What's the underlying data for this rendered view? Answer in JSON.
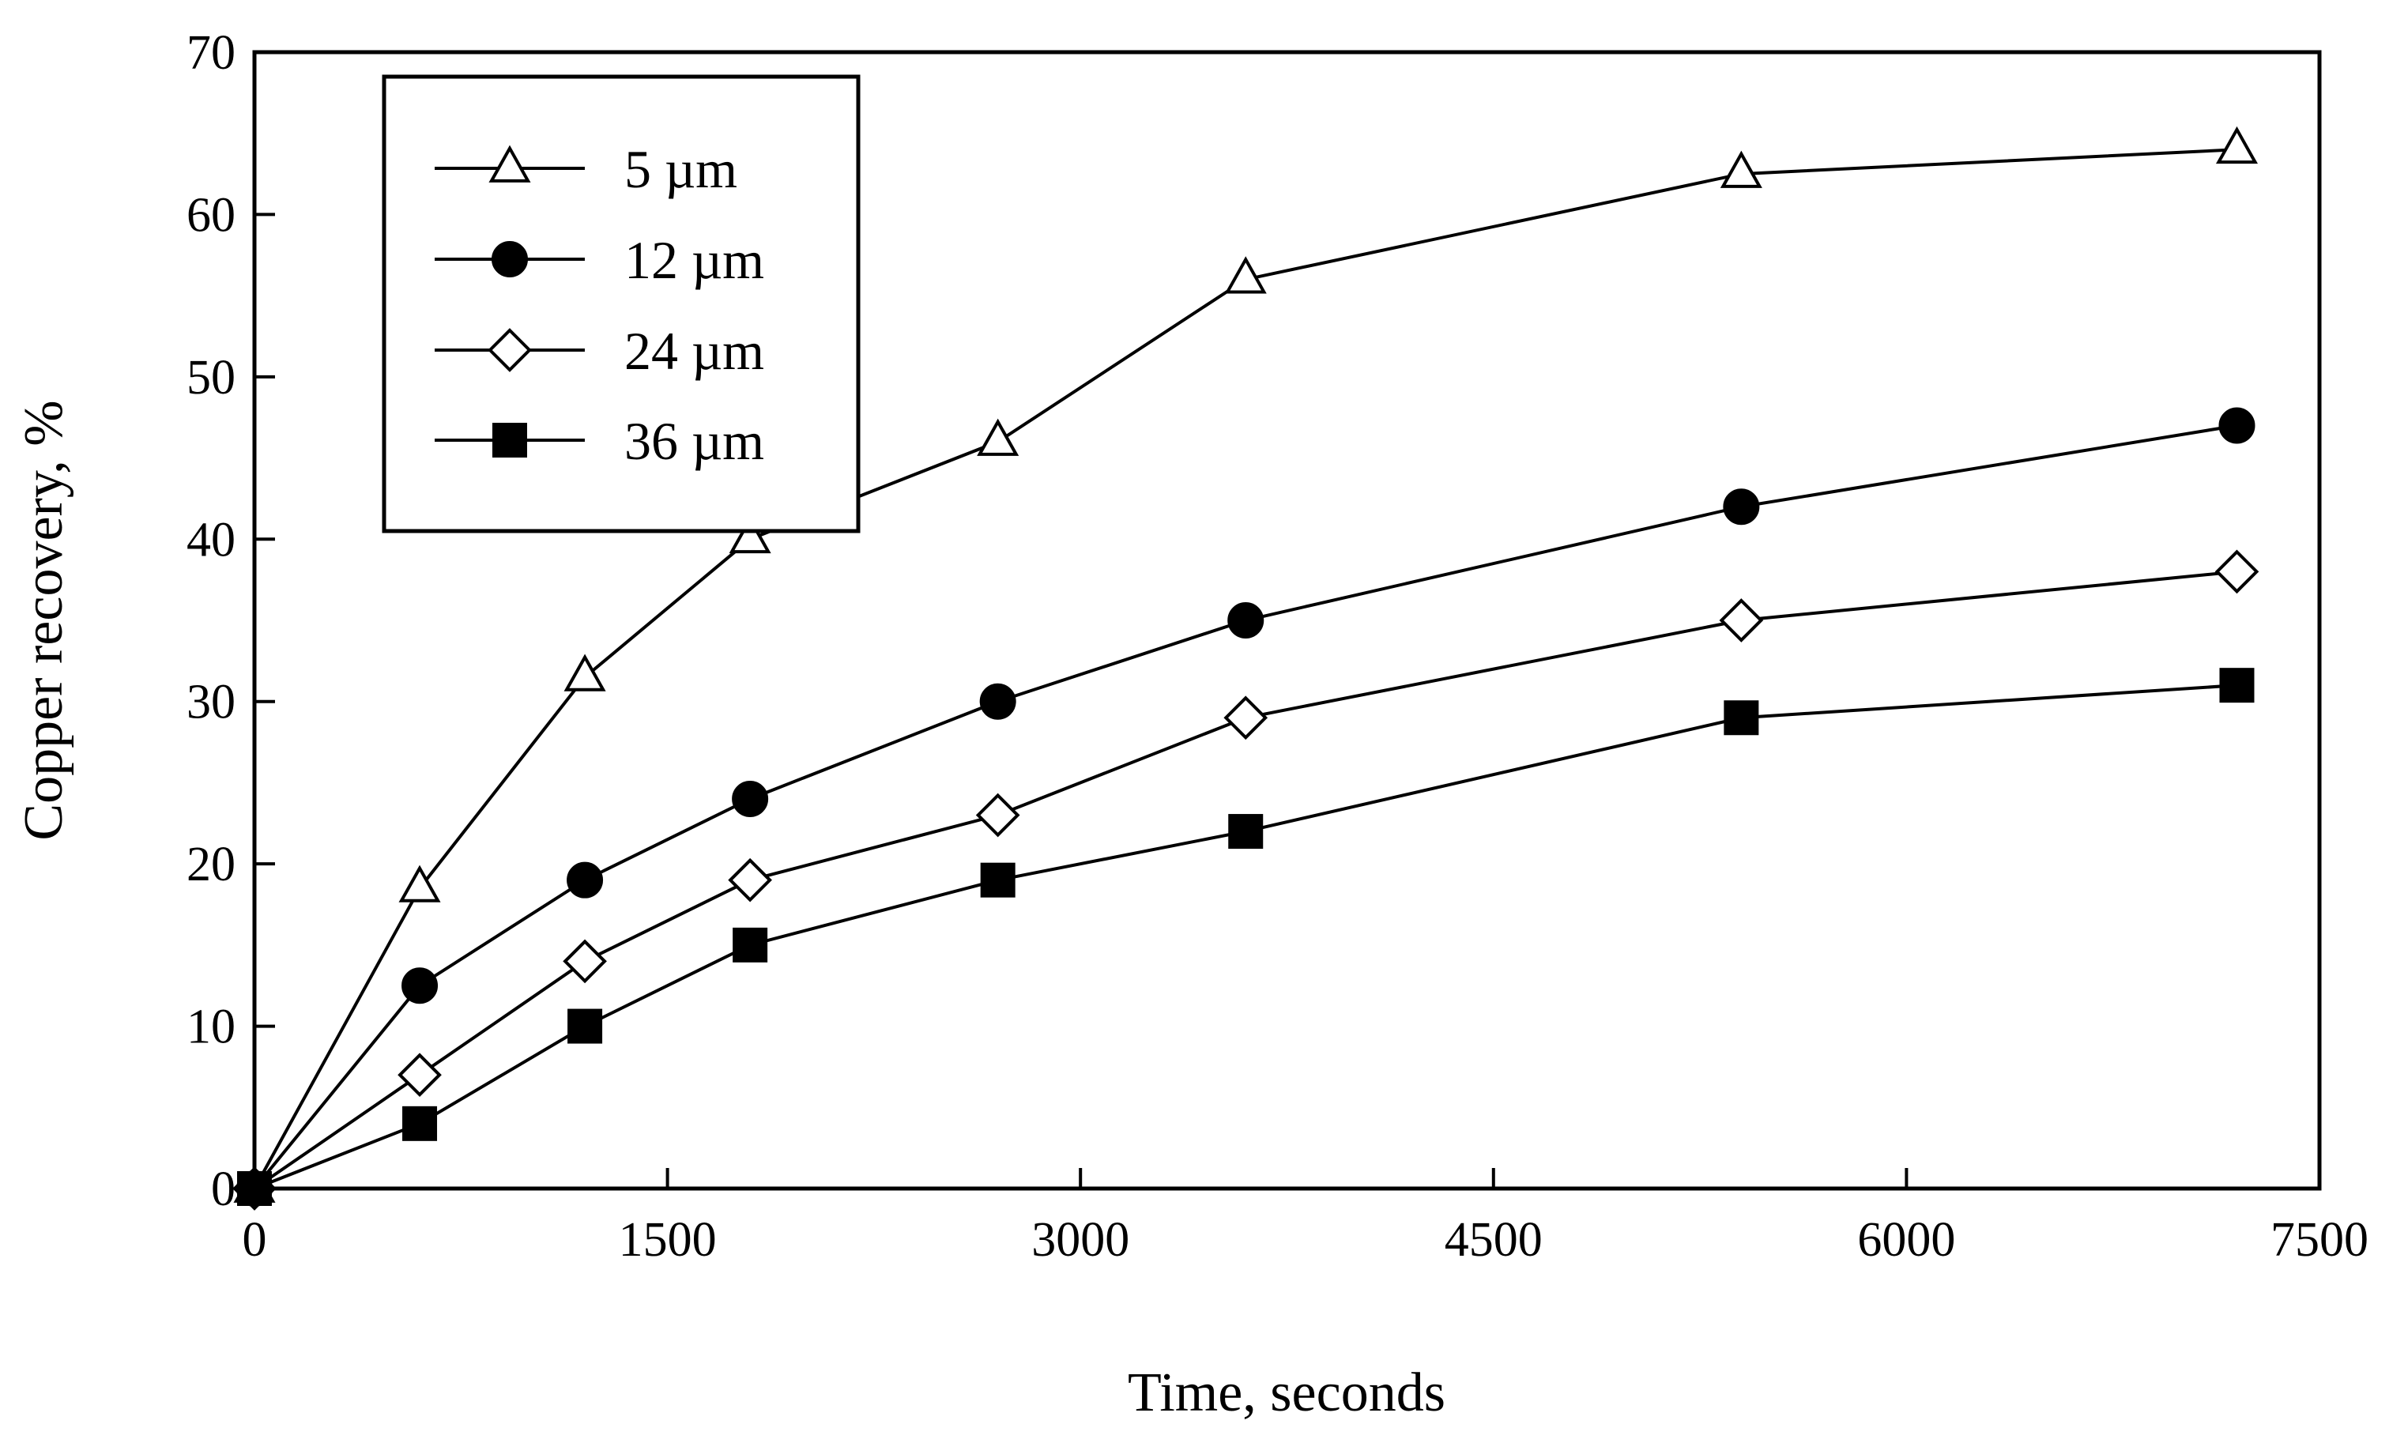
{
  "chart_data": {
    "type": "line",
    "title": "",
    "xlabel": "Time, seconds",
    "ylabel": "Copper recovery, %",
    "xlim": [
      0,
      7500
    ],
    "ylim": [
      0,
      70
    ],
    "xticks": [
      0,
      1500,
      3000,
      4500,
      6000,
      7500
    ],
    "yticks": [
      0,
      10,
      20,
      30,
      40,
      50,
      60,
      70
    ],
    "grid": false,
    "legend_position": "top-left",
    "x": [
      0,
      600,
      1200,
      1800,
      2700,
      3600,
      5400,
      7200
    ],
    "series": [
      {
        "name": "5 µm",
        "marker": "open-triangle",
        "values": [
          0,
          18.5,
          31.5,
          40,
          46,
          56,
          62.5,
          64
        ]
      },
      {
        "name": "12 µm",
        "marker": "filled-circle",
        "values": [
          0,
          12.5,
          19,
          24,
          30,
          35,
          42,
          47
        ]
      },
      {
        "name": "24 µm",
        "marker": "open-diamond",
        "values": [
          0,
          7,
          14,
          19,
          23,
          29,
          35,
          38
        ]
      },
      {
        "name": "36 µm",
        "marker": "filled-square",
        "values": [
          0,
          4,
          10,
          15,
          19,
          22,
          29,
          31
        ]
      }
    ]
  },
  "colors": {
    "line": "#000000",
    "background": "#ffffff"
  }
}
